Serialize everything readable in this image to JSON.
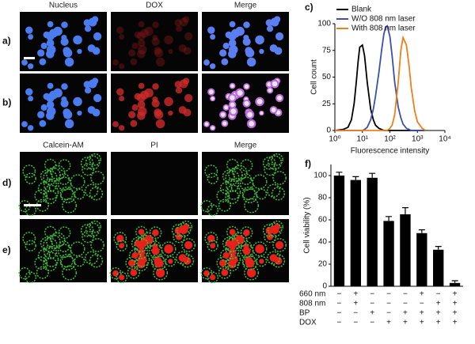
{
  "images": {
    "top_headers": [
      "Nucleus",
      "DOX",
      "Merge"
    ],
    "bottom_headers": [
      "Calcein-AM",
      "PI",
      "Merge"
    ],
    "row_labels": [
      "a)",
      "b)",
      "d)",
      "e)"
    ]
  },
  "chart_data": [
    {
      "type": "line",
      "panel_label": "c)",
      "xlabel": "Fluorescence intensity",
      "ylabel": "Cell count",
      "log_x": true,
      "legend": "upper left",
      "x": [
        1,
        2,
        3,
        4,
        5,
        6,
        7,
        8,
        10,
        12,
        15,
        20,
        25,
        30,
        40,
        50,
        60,
        70,
        80,
        100,
        120,
        150,
        200,
        250,
        300,
        400,
        500,
        600,
        800,
        1000,
        1500,
        2000
      ],
      "series": [
        {
          "name": "Blank",
          "color": "#000000",
          "values": [
            0,
            1,
            3,
            10,
            25,
            45,
            65,
            78,
            80,
            70,
            45,
            20,
            10,
            5,
            2,
            1,
            0,
            0,
            0,
            0,
            0,
            0,
            0,
            0,
            0,
            0,
            0,
            0,
            0,
            0,
            0,
            0
          ]
        },
        {
          "name": "W/O 808 nm laser",
          "color": "#3a4fb0",
          "values": [
            0,
            0,
            0,
            0,
            0,
            0,
            0,
            0,
            0,
            1,
            3,
            10,
            20,
            32,
            55,
            75,
            90,
            97,
            98,
            88,
            70,
            45,
            22,
            12,
            6,
            2,
            1,
            0,
            0,
            0,
            0,
            0
          ]
        },
        {
          "name": "With 808 nm laser",
          "color": "#f07f1a",
          "values": [
            0,
            0,
            0,
            0,
            0,
            0,
            0,
            0,
            0,
            0,
            0,
            0,
            0,
            0,
            0,
            0,
            0,
            0,
            0,
            2,
            5,
            15,
            45,
            75,
            87,
            80,
            60,
            40,
            18,
            8,
            2,
            0
          ]
        }
      ],
      "xlim": [
        1,
        10000
      ],
      "xticks": [
        {
          "value": 1,
          "label": "10⁰"
        },
        {
          "value": 10,
          "label": "10¹"
        },
        {
          "value": 100,
          "label": "10²"
        },
        {
          "value": 1000,
          "label": "10³"
        },
        {
          "value": 10000,
          "label": "10⁴"
        }
      ],
      "ylim": [
        0,
        100
      ],
      "yticks": [
        0,
        25,
        50,
        75,
        100
      ]
    },
    {
      "type": "bar",
      "panel_label": "f)",
      "ylabel": "Cell viability (%)",
      "color": "#000000",
      "values": [
        100,
        96,
        98,
        59,
        65,
        48,
        33,
        3
      ],
      "errors": [
        3,
        3,
        4,
        4,
        6,
        3,
        3,
        2
      ],
      "ylim": [
        0,
        110
      ],
      "yticks": [
        0,
        20,
        40,
        60,
        80,
        100
      ],
      "treatments": [
        {
          "label": "660 nm",
          "marks": [
            "−",
            "+",
            "−",
            "−",
            "−",
            "+",
            "−",
            "+"
          ]
        },
        {
          "label": "808 nm",
          "marks": [
            "−",
            "+",
            "−",
            "−",
            "−",
            "−",
            "+",
            "+"
          ]
        },
        {
          "label": "BP",
          "marks": [
            "−",
            "−",
            "+",
            "−",
            "+",
            "+",
            "+",
            "+"
          ]
        },
        {
          "label": "DOX",
          "marks": [
            "−",
            "−",
            "−",
            "+",
            "+",
            "+",
            "+",
            "+"
          ]
        }
      ]
    }
  ]
}
